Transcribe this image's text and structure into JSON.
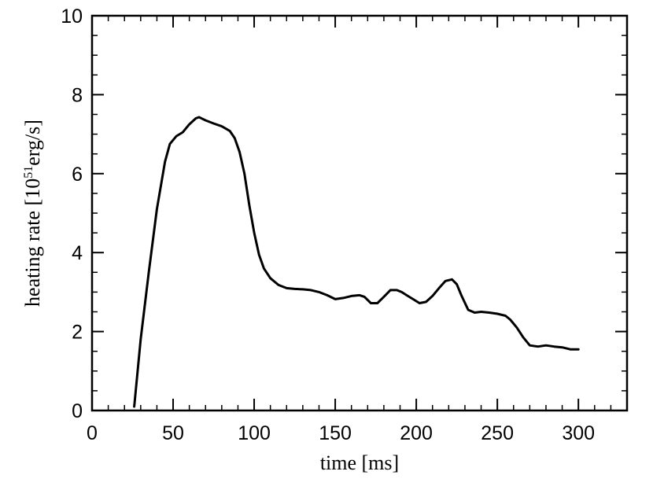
{
  "chart_data": {
    "type": "line",
    "xlabel": "time [ms]",
    "ylabel_prefix": "heating rate [10",
    "ylabel_exponent": "51",
    "ylabel_suffix": "erg/s]",
    "xlim": [
      0,
      330
    ],
    "ylim": [
      0,
      10
    ],
    "x_ticks": [
      0,
      50,
      100,
      150,
      200,
      250,
      300
    ],
    "y_ticks": [
      0,
      2,
      4,
      6,
      8,
      10
    ],
    "x_minor_step": 10,
    "y_minor_step": 0.5,
    "grid": false,
    "line_color": "#000000",
    "series": [
      {
        "x": [
          26,
          30,
          35,
          40,
          45,
          48,
          52,
          56,
          60,
          64,
          66,
          70,
          75,
          80,
          85,
          88,
          91,
          94,
          97,
          100,
          103,
          106,
          110,
          115,
          120,
          125,
          130,
          135,
          140,
          145,
          150,
          155,
          160,
          165,
          168,
          172,
          176,
          180,
          184,
          188,
          191,
          194,
          198,
          202,
          206,
          210,
          214,
          218,
          222,
          225,
          228,
          232,
          236,
          240,
          245,
          250,
          255,
          258,
          262,
          266,
          270,
          275,
          280,
          285,
          290,
          295,
          300
        ],
        "y": [
          0.1,
          1.8,
          3.5,
          5.1,
          6.3,
          6.75,
          6.95,
          7.05,
          7.25,
          7.4,
          7.43,
          7.35,
          7.27,
          7.2,
          7.08,
          6.9,
          6.55,
          6.0,
          5.2,
          4.5,
          3.95,
          3.6,
          3.35,
          3.18,
          3.1,
          3.08,
          3.07,
          3.05,
          3.0,
          2.92,
          2.82,
          2.85,
          2.9,
          2.92,
          2.88,
          2.72,
          2.72,
          2.88,
          3.05,
          3.05,
          3.0,
          2.92,
          2.82,
          2.72,
          2.75,
          2.9,
          3.1,
          3.28,
          3.32,
          3.2,
          2.9,
          2.55,
          2.48,
          2.5,
          2.48,
          2.45,
          2.4,
          2.3,
          2.1,
          1.85,
          1.65,
          1.62,
          1.65,
          1.62,
          1.6,
          1.55,
          1.55
        ]
      }
    ]
  }
}
